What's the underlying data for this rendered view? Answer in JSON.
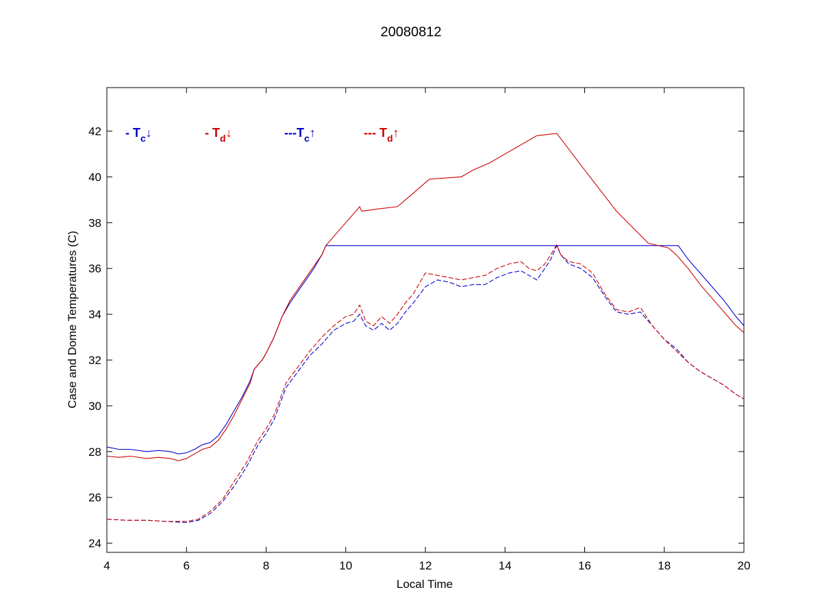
{
  "chart_data": {
    "type": "line",
    "title": "20080812",
    "xlabel": "Local Time",
    "ylabel": "Case and Dome Temperatures (C)",
    "xlim": [
      4,
      20
    ],
    "ylim": [
      23.6,
      43.9
    ],
    "xticks": [
      4,
      6,
      8,
      10,
      12,
      14,
      16,
      18,
      20
    ],
    "yticks": [
      24,
      26,
      28,
      30,
      32,
      34,
      36,
      38,
      40,
      42
    ],
    "grid": false,
    "legend": [
      {
        "prefix": "- ",
        "main": "T",
        "sub": "c",
        "arrow": "↓",
        "color": "#0000cc"
      },
      {
        "prefix": "- ",
        "main": "T",
        "sub": "d",
        "arrow": "↓",
        "color": "#cc0000"
      },
      {
        "prefix": "---",
        "main": "T",
        "sub": "c",
        "arrow": "↑",
        "color": "#0000cc"
      },
      {
        "prefix": "--- ",
        "main": "T",
        "sub": "d",
        "arrow": "↑",
        "color": "#cc0000"
      }
    ],
    "series": [
      {
        "color": "#0000cc",
        "dash": false,
        "x": [
          4.0,
          4.3,
          4.6,
          5.0,
          5.3,
          5.6,
          5.8,
          6.0,
          6.2,
          6.4,
          6.6,
          6.8,
          7.0,
          7.2,
          7.4,
          7.6,
          7.7,
          7.9,
          8.0,
          8.2,
          8.4,
          8.6,
          8.8,
          9.0,
          9.2,
          9.4,
          9.5,
          10.0,
          12.0,
          14.0,
          16.0,
          18.0,
          18.35,
          18.6,
          18.9,
          19.2,
          19.5,
          19.8,
          20.0
        ],
        "y": [
          28.2,
          28.1,
          28.1,
          28.0,
          28.05,
          28.0,
          27.9,
          27.95,
          28.1,
          28.3,
          28.4,
          28.7,
          29.2,
          29.8,
          30.4,
          31.1,
          31.6,
          32.0,
          32.3,
          33.0,
          33.9,
          34.5,
          35.0,
          35.5,
          36.0,
          36.6,
          37.0,
          37.0,
          37.0,
          37.0,
          37.0,
          37.0,
          37.0,
          36.4,
          35.8,
          35.2,
          34.6,
          33.9,
          33.5
        ]
      },
      {
        "color": "#cc0000",
        "dash": false,
        "x": [
          4.0,
          4.3,
          4.6,
          5.0,
          5.3,
          5.6,
          5.8,
          6.0,
          6.2,
          6.4,
          6.6,
          6.8,
          7.0,
          7.2,
          7.4,
          7.6,
          7.7,
          7.9,
          8.0,
          8.2,
          8.4,
          8.6,
          8.8,
          9.0,
          9.2,
          9.4,
          9.5,
          9.8,
          10.1,
          10.35,
          10.4,
          10.8,
          11.3,
          11.7,
          12.1,
          12.5,
          12.9,
          13.2,
          13.6,
          13.9,
          14.3,
          14.8,
          15.3,
          16.0,
          16.8,
          17.6,
          18.1,
          18.3,
          18.6,
          18.9,
          19.2,
          19.5,
          19.8,
          20.0
        ],
        "y": [
          27.8,
          27.75,
          27.8,
          27.7,
          27.75,
          27.7,
          27.6,
          27.7,
          27.9,
          28.1,
          28.2,
          28.5,
          29.0,
          29.6,
          30.3,
          31.0,
          31.6,
          32.0,
          32.3,
          33.0,
          33.9,
          34.6,
          35.1,
          35.6,
          36.1,
          36.6,
          37.0,
          37.6,
          38.2,
          38.7,
          38.5,
          38.6,
          38.7,
          39.3,
          39.9,
          39.95,
          40.0,
          40.3,
          40.6,
          40.9,
          41.3,
          41.8,
          41.9,
          40.3,
          38.5,
          37.1,
          36.9,
          36.6,
          36.0,
          35.3,
          34.7,
          34.1,
          33.5,
          33.2
        ]
      },
      {
        "color": "#0000cc",
        "dash": true,
        "x": [
          4.0,
          4.5,
          5.0,
          5.5,
          6.0,
          6.3,
          6.6,
          6.9,
          7.2,
          7.5,
          7.8,
          8.0,
          8.2,
          8.5,
          8.8,
          9.1,
          9.4,
          9.7,
          10.0,
          10.2,
          10.35,
          10.5,
          10.7,
          10.9,
          11.1,
          11.3,
          11.5,
          11.7,
          12.0,
          12.3,
          12.6,
          12.9,
          13.2,
          13.5,
          13.8,
          14.1,
          14.4,
          14.6,
          14.8,
          15.0,
          15.15,
          15.3,
          15.4,
          15.6,
          15.9,
          16.2,
          16.5,
          16.8,
          17.1,
          17.4,
          17.7,
          18.0,
          18.3,
          18.6,
          18.9,
          19.2,
          19.5,
          19.8,
          20.0
        ],
        "y": [
          25.05,
          25.0,
          25.0,
          24.95,
          24.9,
          25.0,
          25.3,
          25.8,
          26.5,
          27.3,
          28.3,
          28.8,
          29.4,
          30.8,
          31.5,
          32.2,
          32.7,
          33.3,
          33.6,
          33.7,
          34.0,
          33.5,
          33.3,
          33.6,
          33.3,
          33.6,
          34.1,
          34.5,
          35.2,
          35.5,
          35.4,
          35.2,
          35.3,
          35.3,
          35.6,
          35.8,
          35.9,
          35.7,
          35.5,
          36.0,
          36.4,
          37.0,
          36.6,
          36.2,
          36.0,
          35.6,
          34.8,
          34.1,
          34.0,
          34.1,
          33.5,
          32.9,
          32.5,
          31.9,
          31.5,
          31.2,
          30.9,
          30.5,
          30.3
        ]
      },
      {
        "color": "#cc0000",
        "dash": true,
        "x": [
          4.0,
          4.5,
          5.0,
          5.5,
          6.0,
          6.3,
          6.6,
          6.9,
          7.2,
          7.5,
          7.8,
          8.0,
          8.2,
          8.5,
          8.8,
          9.1,
          9.4,
          9.7,
          10.0,
          10.2,
          10.35,
          10.5,
          10.7,
          10.9,
          11.1,
          11.3,
          11.5,
          11.7,
          12.0,
          12.3,
          12.6,
          12.9,
          13.2,
          13.5,
          13.8,
          14.1,
          14.4,
          14.6,
          14.8,
          15.0,
          15.15,
          15.3,
          15.4,
          15.6,
          15.9,
          16.2,
          16.5,
          16.8,
          17.1,
          17.4,
          17.7,
          18.0,
          18.3,
          18.6,
          18.9,
          19.2,
          19.5,
          19.8,
          20.0
        ],
        "y": [
          25.05,
          25.0,
          25.0,
          24.95,
          24.95,
          25.05,
          25.4,
          25.9,
          26.7,
          27.5,
          28.5,
          29.0,
          29.6,
          31.0,
          31.7,
          32.4,
          33.0,
          33.5,
          33.9,
          34.0,
          34.4,
          33.7,
          33.5,
          33.9,
          33.6,
          34.0,
          34.5,
          34.9,
          35.8,
          35.7,
          35.6,
          35.5,
          35.6,
          35.7,
          36.0,
          36.2,
          36.3,
          36.0,
          35.9,
          36.2,
          36.6,
          37.05,
          36.6,
          36.3,
          36.2,
          35.8,
          34.9,
          34.2,
          34.1,
          34.3,
          33.5,
          32.9,
          32.4,
          31.9,
          31.5,
          31.2,
          30.9,
          30.5,
          30.3
        ]
      }
    ]
  }
}
